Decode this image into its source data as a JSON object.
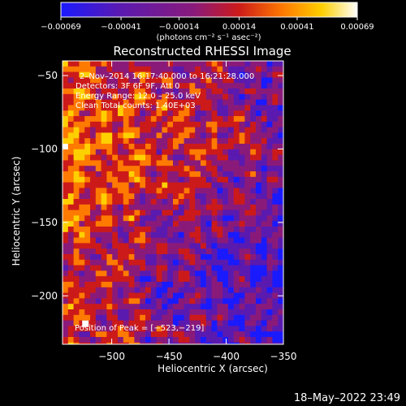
{
  "chart_data": {
    "type": "heatmap",
    "title": "Reconstructed RHESSI Image",
    "xlabel": "Heliocentric X (arcsec)",
    "ylabel": "Heliocentric Y (arcsec)",
    "xlim": [
      -543,
      -350
    ],
    "ylim": [
      -233,
      -40
    ],
    "x_ticks": [
      -500,
      -450,
      -400,
      -350
    ],
    "y_ticks": [
      -50,
      -100,
      -150,
      -200
    ],
    "x_tick_labels": [
      "−500",
      "−450",
      "−400",
      "−350"
    ],
    "y_tick_labels": [
      "−50",
      "−100",
      "−150",
      "−200"
    ],
    "colorbar": {
      "range": [
        -0.00069,
        0.00069
      ],
      "ticks": [
        -0.00069,
        -0.00041,
        -0.00014,
        0.00014,
        0.00041,
        0.00069
      ],
      "tick_labels": [
        "−0.00069",
        "−0.00041",
        "−0.00014",
        "0.00014",
        "0.00041",
        "0.00069"
      ],
      "unit_label": "(photons cm⁻² s⁻¹ asec⁻²)",
      "colors": [
        "#1a1aff",
        "#5a1ab0",
        "#8a1a7a",
        "#cc1a1a",
        "#ff7a00",
        "#ffd000",
        "#ffffff"
      ]
    },
    "annotations": [
      "2–Nov–2014 16:17:40.000 to 16:21:28.000",
      "Detectors: 3F 6F 9F, Att 0",
      "Energy Range: 12.0 – 25.0 keV",
      "Clean    Total counts: 1.40E+03"
    ],
    "peak_label": "Position of Peak = [−523,−219]",
    "peak_position": [
      -523,
      -219
    ]
  },
  "footer": {
    "timestamp": "18–May–2022 23:49"
  }
}
